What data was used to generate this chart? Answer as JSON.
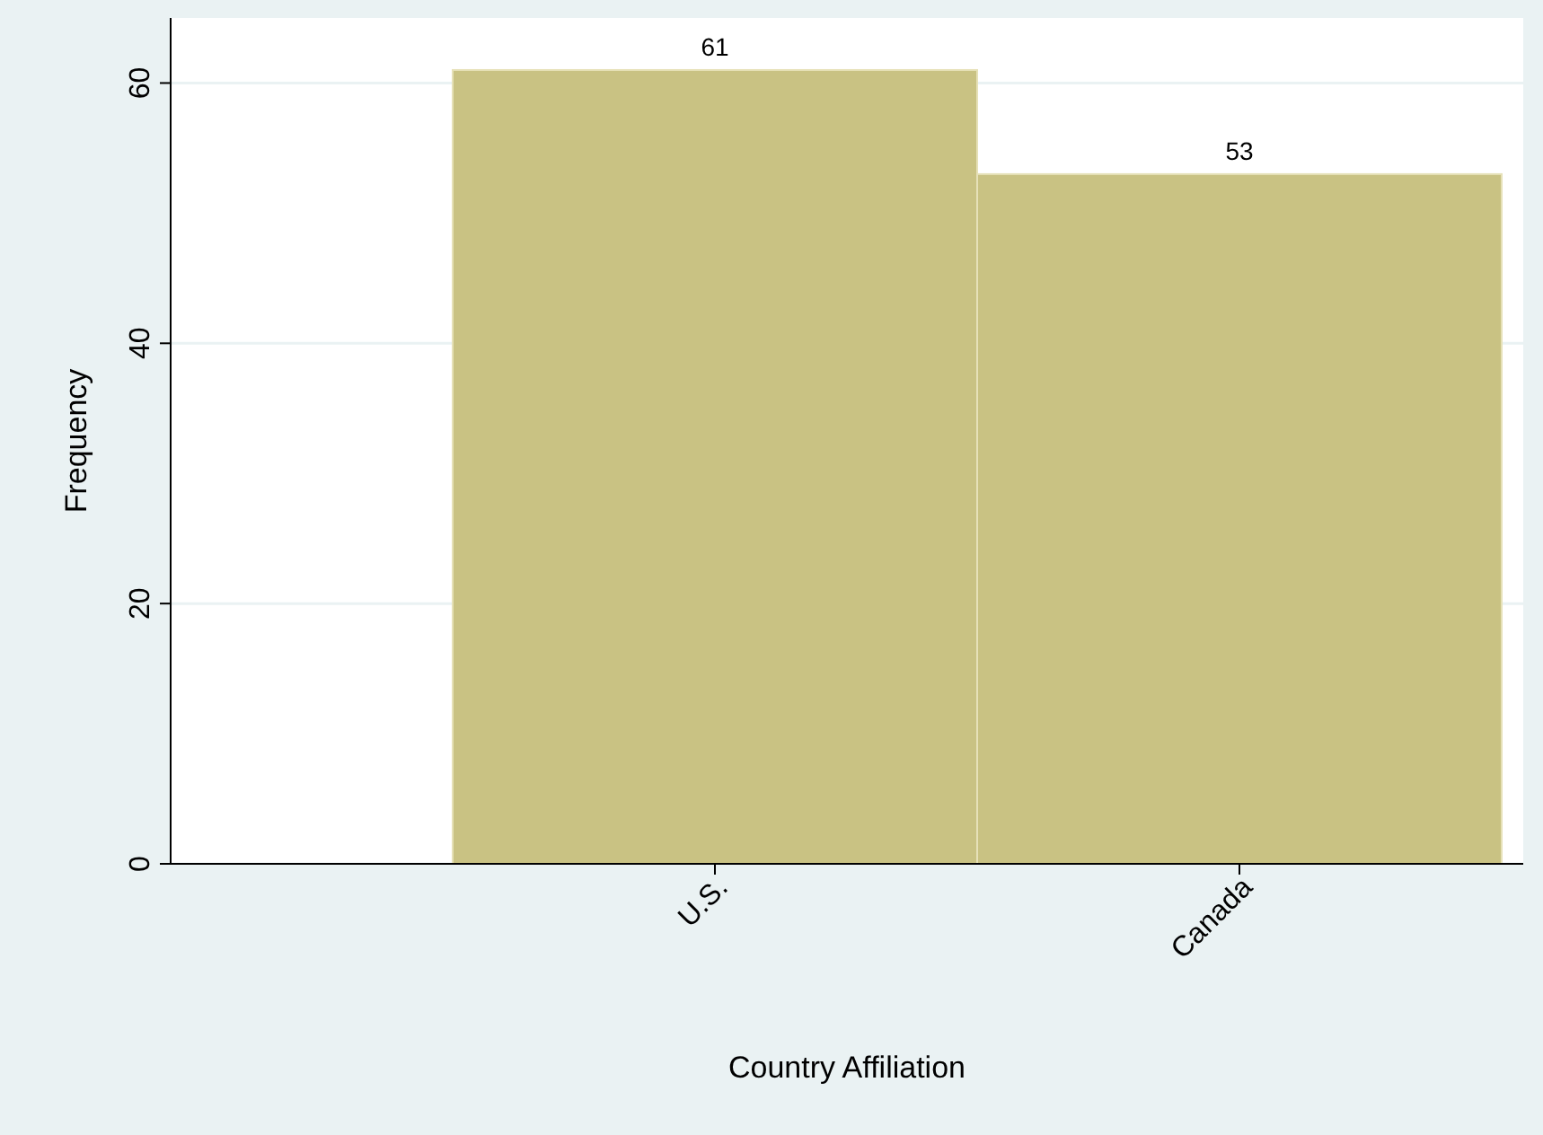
{
  "chart_data": {
    "type": "bar",
    "xlabel": "Country Affiliation",
    "ylabel": "Frequency",
    "categories": [
      "U.S.",
      "Canada"
    ],
    "values": [
      61,
      53
    ],
    "color": "#c9c283",
    "data_labels": true,
    "ylim": [
      0,
      65
    ],
    "yticks": [
      0,
      20,
      40,
      60
    ],
    "grid": "y"
  }
}
